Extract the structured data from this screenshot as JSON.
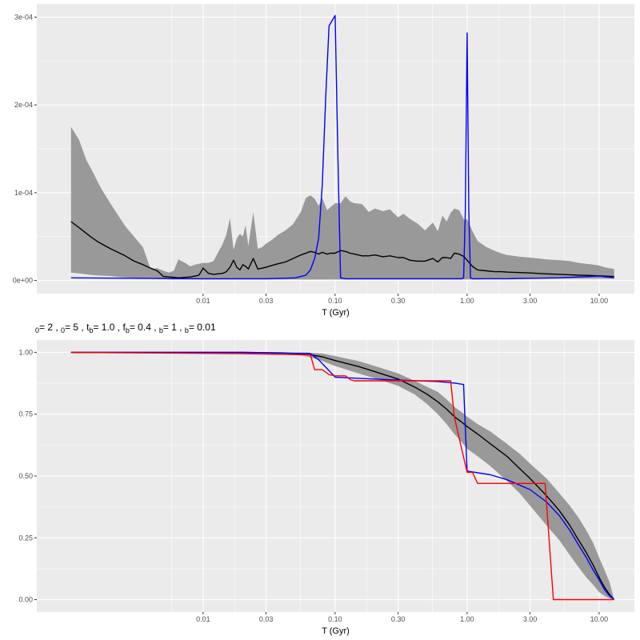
{
  "chart_data": [
    {
      "type": "line",
      "xscale": "log",
      "xlabel": "T (Gyr)",
      "ylabel": "",
      "x_ticks": [
        0.01,
        0.03,
        0.1,
        0.3,
        1,
        3,
        10
      ],
      "x_tick_labels": [
        "0.01",
        "0.03",
        "0.10",
        "0.30",
        "1.00",
        "3.00",
        "10.00"
      ],
      "y_ticks": [
        0,
        0.0001,
        0.0002,
        0.0003
      ],
      "y_tick_labels": [
        "0e+00",
        "1e-04",
        "2e-04",
        "3e-04"
      ],
      "xlim": [
        0.00055,
        18.5
      ],
      "ylim": [
        -1.5e-05,
        0.000315
      ],
      "grid": true,
      "colors": {
        "panel": "#ebebeb",
        "grid_major": "#ffffff",
        "ribbon": "#999999",
        "median": "#000000",
        "blue": "#0000ff"
      },
      "ribbon": {
        "x": [
          0.001,
          0.00115,
          0.0013,
          0.0015,
          0.0017,
          0.002,
          0.0023,
          0.0026,
          0.003,
          0.0035,
          0.004,
          0.0045,
          0.005,
          0.0055,
          0.006,
          0.0065,
          0.0073,
          0.008,
          0.0087,
          0.0093,
          0.01,
          0.011,
          0.012,
          0.013,
          0.014,
          0.015,
          0.016,
          0.017,
          0.018,
          0.019,
          0.02,
          0.021,
          0.022,
          0.024,
          0.026,
          0.028,
          0.03,
          0.033,
          0.037,
          0.042,
          0.048,
          0.055,
          0.06,
          0.065,
          0.07,
          0.075,
          0.08,
          0.087,
          0.093,
          0.1,
          0.11,
          0.12,
          0.13,
          0.14,
          0.16,
          0.18,
          0.2,
          0.23,
          0.26,
          0.3,
          0.33,
          0.37,
          0.42,
          0.48,
          0.55,
          0.6,
          0.65,
          0.7,
          0.75,
          0.8,
          0.87,
          0.95,
          1.0,
          1.1,
          1.2,
          1.4,
          1.6,
          1.8,
          2.0,
          2.5,
          3.0,
          3.5,
          4.0,
          5.0,
          6.0,
          7.0,
          8.0,
          9.0,
          10.0,
          11.0,
          12.0,
          13.0
        ],
        "lower": [
          9e-06,
          8e-06,
          7e-06,
          6e-06,
          5.5e-06,
          5e-06,
          4e-06,
          3.5e-06,
          3e-06,
          2e-06,
          2e-06,
          1.5e-06,
          1.5e-06,
          1e-06,
          1e-06,
          1e-06,
          1e-06,
          1e-06,
          1e-06,
          1e-06,
          1e-06,
          1e-06,
          1e-06,
          1e-06,
          1e-06,
          1e-06,
          1e-06,
          1e-06,
          1e-06,
          1e-06,
          1e-06,
          1e-06,
          1e-06,
          1e-06,
          1e-06,
          1e-06,
          1e-06,
          1e-06,
          1e-06,
          1e-06,
          1e-06,
          1e-06,
          1e-06,
          1e-06,
          1e-06,
          1e-06,
          1e-06,
          1e-06,
          1e-06,
          1e-06,
          1e-06,
          1e-06,
          1e-06,
          1e-06,
          1e-06,
          1e-06,
          1e-06,
          1e-06,
          1e-06,
          1e-06,
          1e-06,
          1e-06,
          1e-06,
          1e-06,
          1e-06,
          1e-06,
          1e-06,
          1e-06,
          1e-06,
          1e-06,
          1e-06,
          1e-06,
          1e-06,
          1e-06,
          1e-06,
          1.5e-06,
          2e-06,
          2e-06,
          2e-06,
          2e-06,
          2e-06,
          2e-06,
          2e-06,
          2e-06,
          2e-06,
          2e-06,
          2e-06,
          2e-06,
          2e-06,
          2e-06,
          2e-06,
          2e-06
        ],
        "upper": [
          0.000175,
          0.00016,
          0.000138,
          0.00012,
          0.000104,
          8.7e-05,
          7.3e-05,
          6.1e-05,
          5e-05,
          3.8e-05,
          1.3e-05,
          1.4e-05,
          1.1e-05,
          9e-06,
          1.1e-05,
          2.4e-05,
          2e-05,
          1.6e-05,
          1.8e-05,
          1.9e-05,
          2e-05,
          2e-05,
          2.2e-05,
          3.2e-05,
          4.1e-05,
          5.2e-05,
          7.1e-05,
          3.5e-05,
          4.8e-05,
          5.3e-05,
          5e-05,
          6.3e-05,
          3.9e-05,
          7.8e-05,
          3.6e-05,
          3.8e-05,
          4.2e-05,
          4.6e-05,
          5.2e-05,
          5.7e-05,
          6.4e-05,
          7.8e-05,
          9.4e-05,
          9.7e-05,
          9.3e-05,
          8.5e-05,
          9.4e-05,
          8e-05,
          8.4e-05,
          8.8e-05,
          8.8e-05,
          9.6e-05,
          9e-05,
          8.8e-05,
          8.7e-05,
          7.8e-05,
          8.2e-05,
          7.9e-05,
          8.1e-05,
          7.2e-05,
          7.6e-05,
          7e-05,
          6.5e-05,
          5.7e-05,
          6.6e-05,
          5.6e-05,
          7.4e-05,
          6.7e-05,
          7.7e-05,
          8.2e-05,
          8e-05,
          6.9e-05,
          7e-05,
          5.6e-05,
          4.5e-05,
          3.8e-05,
          3.4e-05,
          3.1e-05,
          2.9e-05,
          2.7e-05,
          2.6e-05,
          2.5e-05,
          2.4e-05,
          2.3e-05,
          2.2e-05,
          2e-05,
          1.9e-05,
          1.8e-05,
          1.7e-05,
          1.5e-05,
          1.4e-05,
          1.3e-05
        ]
      },
      "series": [
        {
          "x": [
            0.001,
            0.0012,
            0.0014,
            0.0016,
            0.002,
            0.0025,
            0.003,
            0.0035,
            0.004,
            0.0045,
            0.005,
            0.0055,
            0.006,
            0.0065,
            0.0073,
            0.008,
            0.0087,
            0.0093,
            0.01,
            0.011,
            0.012,
            0.013,
            0.014,
            0.015,
            0.016,
            0.017,
            0.018,
            0.019,
            0.02,
            0.021,
            0.022,
            0.024,
            0.026,
            0.028,
            0.03,
            0.033,
            0.037,
            0.042,
            0.048,
            0.055,
            0.06,
            0.065,
            0.07,
            0.075,
            0.08,
            0.087,
            0.093,
            0.1,
            0.11,
            0.12,
            0.13,
            0.14,
            0.16,
            0.18,
            0.2,
            0.23,
            0.26,
            0.3,
            0.33,
            0.37,
            0.42,
            0.48,
            0.55,
            0.6,
            0.65,
            0.7,
            0.75,
            0.8,
            0.87,
            0.95,
            1.0,
            1.1,
            1.2,
            1.4,
            1.6,
            1.8,
            2.0,
            2.5,
            3.0,
            3.5,
            4.0,
            5.0,
            6.0,
            7.0,
            8.0,
            9.0,
            10.0,
            11.0,
            12.0,
            13.0
          ],
          "y": [
            6.7e-05,
            5.8e-05,
            5e-05,
            4.4e-05,
            3.6e-05,
            2.9e-05,
            2.2e-05,
            1.8e-05,
            1.4e-05,
            1.1e-05,
            4.5e-06,
            4e-06,
            3.5e-06,
            3e-06,
            3.5e-06,
            4e-06,
            5e-06,
            6e-06,
            1.4e-05,
            8e-06,
            7e-06,
            7.5e-06,
            8e-06,
            1e-05,
            1.5e-05,
            2.3e-05,
            1.5e-05,
            1.2e-05,
            1.8e-05,
            1.6e-05,
            1.3e-05,
            2.5e-05,
            1.3e-05,
            1.4e-05,
            1.5e-05,
            1.7e-05,
            1.9e-05,
            2.1e-05,
            2.5e-05,
            2.9e-05,
            3.1e-05,
            3.3e-05,
            3.2e-05,
            3e-05,
            3.2e-05,
            3e-05,
            3.1e-05,
            3.1e-05,
            3.4e-05,
            3.3e-05,
            3.1e-05,
            3e-05,
            2.8e-05,
            2.8e-05,
            2.9e-05,
            2.7e-05,
            2.8e-05,
            2.6e-05,
            2.6e-05,
            2.3e-05,
            2.2e-05,
            2.2e-05,
            2.5e-05,
            2.1e-05,
            2.6e-05,
            2.6e-05,
            2.5e-05,
            3.1e-05,
            3e-05,
            2.7e-05,
            2.3e-05,
            1.6e-05,
            1.2e-05,
            1.1e-05,
            1e-05,
            1e-05,
            9.5e-06,
            9e-06,
            8.5e-06,
            8e-06,
            7.5e-06,
            7e-06,
            6.5e-06,
            6e-06,
            5.8e-06,
            5.5e-06,
            5.2e-06,
            5e-06,
            4.7e-06,
            4.5e-06
          ],
          "color": "#000000"
        },
        {
          "x": [
            0.001,
            0.01,
            0.03,
            0.05,
            0.06,
            0.065,
            0.07,
            0.075,
            0.08,
            0.085,
            0.09,
            0.1,
            0.105,
            0.11,
            0.12,
            0.15,
            0.3,
            0.6,
            0.8,
            0.9,
            0.94,
            0.97,
            1.0,
            1.03,
            1.06,
            1.1,
            1.2,
            2.0,
            5.0,
            10.0,
            13.0
          ],
          "y": [
            3e-06,
            2e-06,
            2e-06,
            3e-06,
            6e-06,
            1.2e-05,
            2.5e-05,
            4.8e-05,
            0.00011,
            0.00021,
            0.00029,
            0.000302,
            0.00014,
            3e-06,
            2e-06,
            2e-06,
            2e-06,
            2e-06,
            2e-06,
            2e-06,
            3e-06,
            8e-05,
            0.000282,
            8e-05,
            3e-06,
            2e-06,
            2e-06,
            2e-06,
            3e-06,
            5e-06,
            3e-06
          ],
          "color": "#0000ff"
        }
      ]
    },
    {
      "type": "line",
      "xscale": "log",
      "xlabel": "T (Gyr)",
      "ylabel": "",
      "x_ticks": [
        0.01,
        0.03,
        0.1,
        0.3,
        1,
        3,
        10
      ],
      "x_tick_labels": [
        "0.01",
        "0.03",
        "0.10",
        "0.30",
        "1.00",
        "3.00",
        "10.00"
      ],
      "y_ticks": [
        0,
        0.25,
        0.5,
        0.75,
        1.0
      ],
      "y_tick_labels": [
        "0.00",
        "0.25",
        "0.50",
        "0.75",
        "1.00"
      ],
      "xlim": [
        0.00055,
        18.5
      ],
      "ylim": [
        -0.05,
        1.05
      ],
      "grid": true,
      "colors": {
        "panel": "#ebebeb",
        "grid_major": "#ffffff",
        "ribbon": "#999999",
        "median": "#000000",
        "blue": "#0000ff",
        "red": "#ff0000"
      },
      "ribbon": {
        "x": [
          0.001,
          0.02,
          0.04,
          0.06,
          0.08,
          0.1,
          0.15,
          0.2,
          0.3,
          0.4,
          0.5,
          0.6,
          0.7,
          0.8,
          0.9,
          1.0,
          1.2,
          1.5,
          2.0,
          2.5,
          3.0,
          4.0,
          5.0,
          6.0,
          7.0,
          8.0,
          9.0,
          10.0,
          11.0,
          12.0,
          13.0
        ],
        "lower": [
          1.0,
          1.0,
          0.995,
          0.985,
          0.965,
          0.945,
          0.915,
          0.895,
          0.865,
          0.83,
          0.79,
          0.75,
          0.71,
          0.67,
          0.64,
          0.61,
          0.58,
          0.54,
          0.48,
          0.43,
          0.38,
          0.3,
          0.24,
          0.18,
          0.13,
          0.09,
          0.06,
          0.03,
          0.015,
          0.005,
          0.0
        ],
        "upper": [
          1.0,
          1.0,
          1.0,
          1.0,
          0.995,
          0.985,
          0.965,
          0.945,
          0.915,
          0.885,
          0.86,
          0.84,
          0.81,
          0.78,
          0.76,
          0.74,
          0.71,
          0.68,
          0.63,
          0.59,
          0.55,
          0.49,
          0.43,
          0.38,
          0.33,
          0.28,
          0.23,
          0.17,
          0.12,
          0.07,
          0.0
        ]
      },
      "series": [
        {
          "x": [
            0.001,
            0.02,
            0.04,
            0.06,
            0.08,
            0.1,
            0.15,
            0.2,
            0.3,
            0.4,
            0.5,
            0.6,
            0.7,
            0.8,
            0.9,
            1.0,
            1.2,
            1.5,
            2.0,
            2.5,
            3.0,
            4.0,
            5.0,
            6.0,
            7.0,
            8.0,
            9.0,
            10.0,
            11.0,
            12.0,
            13.0
          ],
          "y": [
            1.0,
            1.0,
            0.998,
            0.993,
            0.982,
            0.967,
            0.943,
            0.922,
            0.892,
            0.86,
            0.83,
            0.8,
            0.77,
            0.74,
            0.72,
            0.7,
            0.67,
            0.63,
            0.58,
            0.53,
            0.49,
            0.42,
            0.36,
            0.3,
            0.24,
            0.19,
            0.14,
            0.09,
            0.05,
            0.02,
            0.0
          ],
          "color": "#000000"
        },
        {
          "x": [
            0.001,
            0.02,
            0.065,
            0.075,
            0.085,
            0.1,
            0.15,
            0.3,
            0.6,
            0.8,
            0.94,
            0.97,
            1.0,
            1.5,
            2.0,
            3.0,
            4.0,
            5.0,
            6.0,
            7.0,
            8.0,
            9.0,
            10.0,
            11.0,
            12.0,
            13.0
          ],
          "y": [
            1.0,
            1.0,
            0.995,
            0.97,
            0.94,
            0.9,
            0.895,
            0.888,
            0.882,
            0.876,
            0.87,
            0.69,
            0.52,
            0.505,
            0.485,
            0.445,
            0.395,
            0.34,
            0.28,
            0.22,
            0.17,
            0.12,
            0.08,
            0.04,
            0.015,
            0.0
          ],
          "color": "#0000ff"
        },
        {
          "x": [
            0.001,
            0.02,
            0.065,
            0.07,
            0.08,
            0.09,
            0.1,
            0.12,
            0.13,
            0.14,
            0.15,
            0.3,
            0.5,
            0.75,
            0.8,
            0.9,
            1.0,
            1.1,
            1.2,
            1.3,
            2.0,
            3.5,
            3.9,
            4.5,
            13.0
          ],
          "y": [
            1.0,
            0.995,
            0.99,
            0.93,
            0.93,
            0.91,
            0.905,
            0.905,
            0.89,
            0.885,
            0.885,
            0.885,
            0.885,
            0.885,
            0.74,
            0.62,
            0.515,
            0.515,
            0.47,
            0.47,
            0.47,
            0.47,
            0.47,
            0.0,
            0.0
          ],
          "color": "#ff0000"
        }
      ],
      "subtitle": {
        "parts": [
          {
            "sub": "0",
            "val": "= 2 ,  "
          },
          {
            "sub": "0",
            "val": "= 5 , "
          },
          {
            "lead": "t",
            "sub": "b",
            "val": "= 1.0 , "
          },
          {
            "lead": "f",
            "sub": "b",
            "val": "= 0.4 ,  "
          },
          {
            "sub": "b",
            "val": "= 1 ,  "
          },
          {
            "sub": "b",
            "val": "= 0.01"
          }
        ]
      }
    }
  ]
}
